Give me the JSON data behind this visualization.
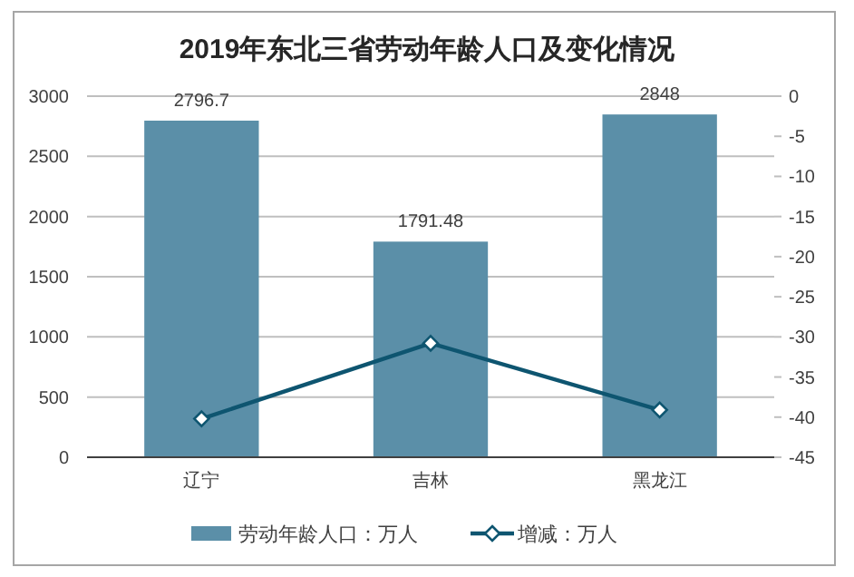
{
  "chart_data": {
    "type": "bar",
    "title": "2019年东北三省劳动年龄人口及变化情况",
    "categories": [
      "辽宁",
      "吉林",
      "黑龙江"
    ],
    "series": [
      {
        "name": "劳动年龄人口：万人",
        "color": "#5b8fa8",
        "values": [
          2796.7,
          1791.48,
          2848
        ],
        "value_labels": [
          "2796.7",
          "1791.48",
          "2848"
        ]
      },
      {
        "name": "增减：万人",
        "type": "line",
        "axis": "y2",
        "color": "#0e5570",
        "marker": "diamond",
        "values": [
          -40.2,
          -30.8,
          -39.1
        ]
      }
    ],
    "ylim": [
      0,
      3000
    ],
    "yticks": [
      0,
      500,
      1000,
      1500,
      2000,
      2500,
      3000
    ],
    "y2lim": [
      -45,
      0
    ],
    "y2ticks": [
      0,
      -5,
      -10,
      -15,
      -20,
      -25,
      -30,
      -35,
      -40,
      -45
    ],
    "grid": "y",
    "legend": "bottom"
  }
}
